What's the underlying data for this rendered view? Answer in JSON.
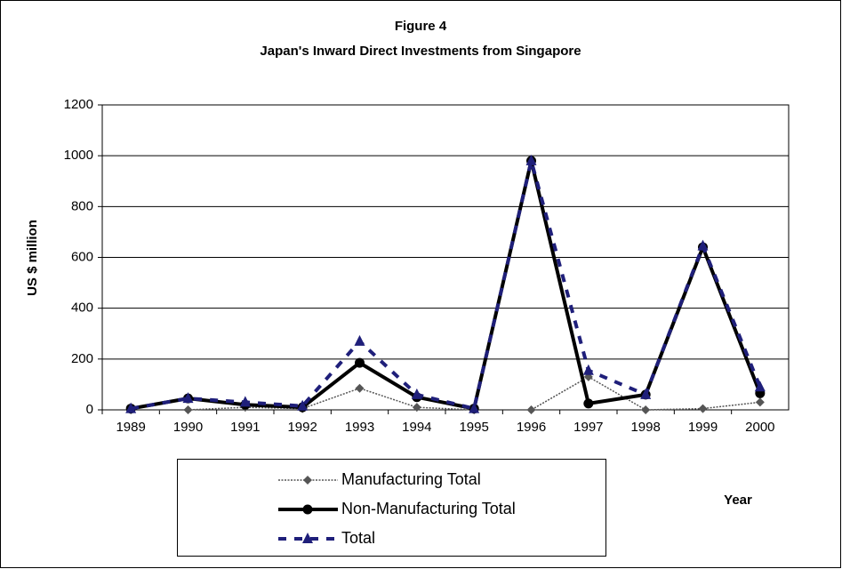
{
  "chart_data": {
    "type": "line",
    "title": "Figure 4",
    "subtitle": "Japan's Inward Direct Investments from Singapore",
    "y_label": "US $ million",
    "x_label": "Year",
    "categories": [
      "1989",
      "1990",
      "1991",
      "1992",
      "1993",
      "1994",
      "1995",
      "1996",
      "1997",
      "1998",
      "1999",
      "2000"
    ],
    "series": [
      {
        "name": "Manufacturing Total",
        "color": "#555555",
        "marker": "diamond",
        "values": [
          0,
          0,
          10,
          5,
          85,
          10,
          0,
          0,
          130,
          0,
          5,
          30
        ]
      },
      {
        "name": "Non-Manufacturing Total",
        "color": "#000000",
        "marker": "circle",
        "values": [
          5,
          45,
          20,
          10,
          185,
          50,
          5,
          980,
          25,
          60,
          640,
          65
        ]
      },
      {
        "name": "Total",
        "color": "#1f1f7a",
        "marker": "triangle",
        "values": [
          5,
          45,
          30,
          15,
          270,
          60,
          5,
          980,
          155,
          60,
          645,
          90
        ]
      }
    ],
    "ylim": [
      0,
      1200
    ],
    "yticks": [
      0,
      200,
      400,
      600,
      800,
      1000,
      1200
    ],
    "grid": true
  }
}
